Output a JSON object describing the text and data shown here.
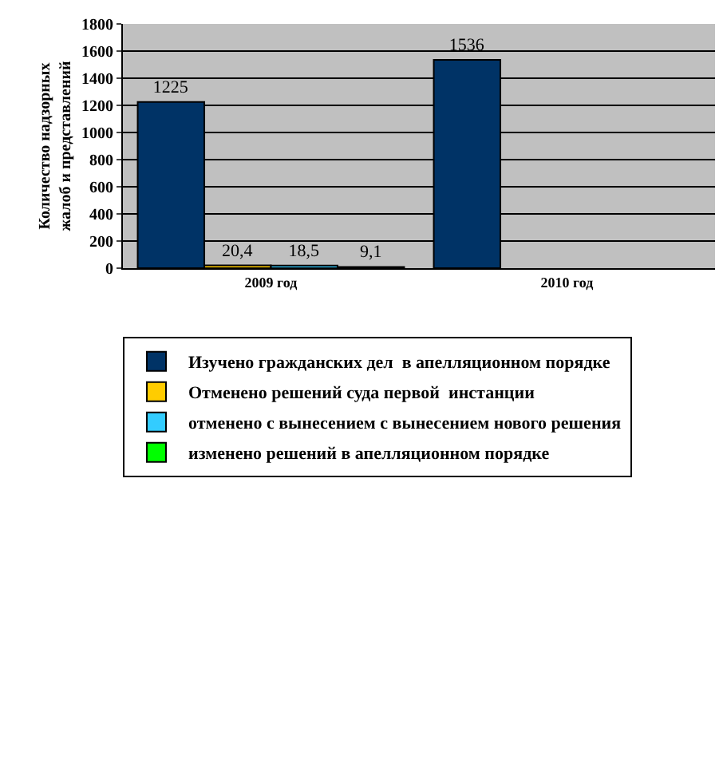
{
  "chart_data": {
    "type": "bar",
    "ylabel": "Количество надзорных жалоб и представлений",
    "categories": [
      "2009 год",
      "2010 год"
    ],
    "series": [
      {
        "name": "Изучено гражданских дел  в апелляционном порядке",
        "color": "#003366",
        "values": [
          1225,
          1536
        ],
        "value_labels": [
          "1225",
          "1536"
        ]
      },
      {
        "name": "Отменено решений суда первой  инстанции",
        "color": "#ffcc00",
        "values": [
          20.4,
          null
        ],
        "value_labels": [
          "20,4",
          null
        ]
      },
      {
        "name": "отменено с вынесением с вынесением нового решения",
        "color": "#33ccff",
        "values": [
          18.5,
          null
        ],
        "value_labels": [
          "18,5",
          null
        ]
      },
      {
        "name": "изменено решений в апелляционном порядке",
        "color": "#00ff00",
        "values": [
          9.1,
          null
        ],
        "value_labels": [
          "9,1",
          null
        ]
      }
    ],
    "ylim": [
      0,
      1800
    ],
    "yticks": [
      0,
      200,
      400,
      600,
      800,
      1000,
      1200,
      1400,
      1600,
      1800
    ],
    "grid": "y",
    "legend": "bottom"
  }
}
